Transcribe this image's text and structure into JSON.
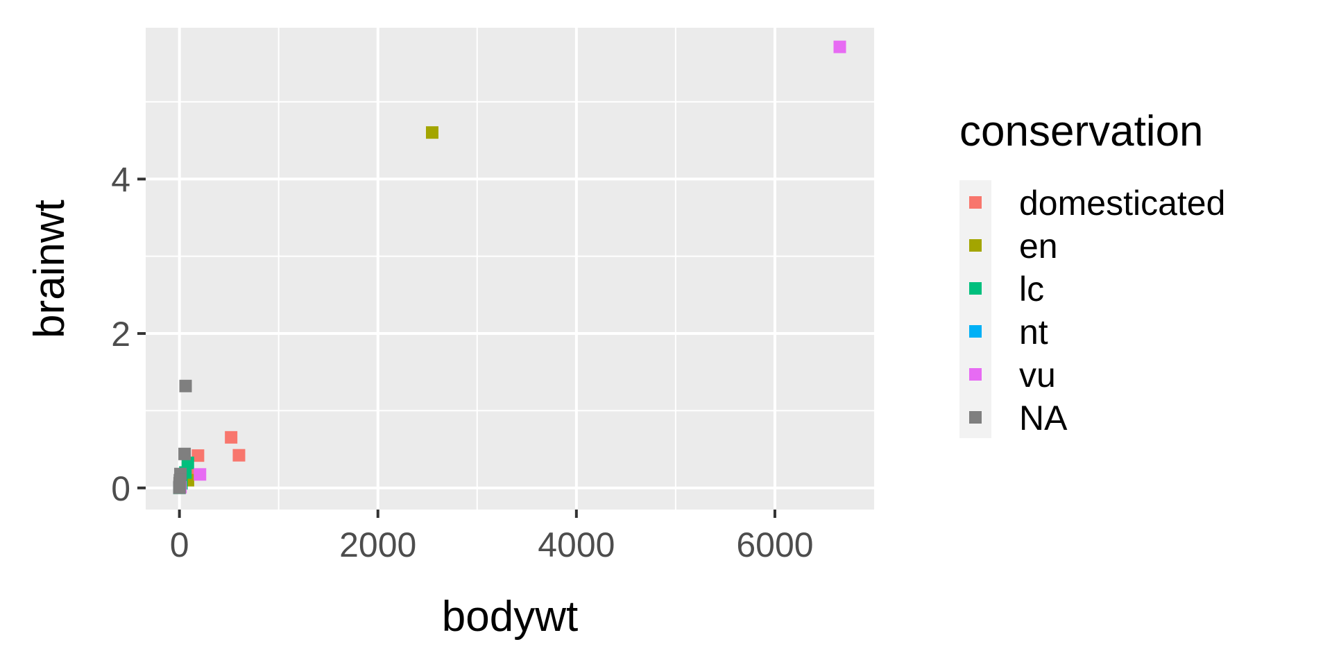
{
  "chart_data": {
    "type": "scatter",
    "title": "",
    "xlabel": "bodywt",
    "ylabel": "brainwt",
    "xlim": [
      -340,
      7000
    ],
    "ylim": [
      -0.28,
      5.96
    ],
    "x_ticks": [
      0,
      2000,
      4000,
      6000
    ],
    "x_tick_labels": [
      "0",
      "2000",
      "4000",
      "6000"
    ],
    "y_ticks": [
      0,
      2,
      4
    ],
    "y_tick_labels": [
      "0",
      "2",
      "4"
    ],
    "x_minor_ticks": [
      1000,
      3000,
      5000
    ],
    "y_minor_ticks": [
      1,
      3,
      5
    ],
    "grid": true,
    "marker": "square",
    "legend": {
      "title": "conservation",
      "position": "right"
    },
    "series": [
      {
        "name": "domesticated",
        "color": "#F8766D",
        "points": [
          {
            "x": 521,
            "y": 0.655
          },
          {
            "x": 600,
            "y": 0.423
          },
          {
            "x": 187,
            "y": 0.419
          },
          {
            "x": 85,
            "y": 0.18
          },
          {
            "x": 62,
            "y": 0.175
          },
          {
            "x": 3.3,
            "y": 0.025
          },
          {
            "x": 0.6,
            "y": 0.005
          },
          {
            "x": 1.0,
            "y": 0.0055
          }
        ]
      },
      {
        "name": "en",
        "color": "#A3A500",
        "points": [
          {
            "x": 2547,
            "y": 4.603
          },
          {
            "x": 86,
            "y": 0.1
          },
          {
            "x": 10,
            "y": 0.02
          }
        ]
      },
      {
        "name": "lc",
        "color": "#00BF7D",
        "points": [
          {
            "x": 85,
            "y": 0.325
          },
          {
            "x": 60,
            "y": 0.2
          },
          {
            "x": 20,
            "y": 0.06
          },
          {
            "x": 3.5,
            "y": 0.012
          },
          {
            "x": 0.05,
            "y": 0.001
          }
        ]
      },
      {
        "name": "nt",
        "color": "#00B0F6",
        "points": [
          {
            "x": 3.4,
            "y": 0.011
          },
          {
            "x": 0.9,
            "y": 0.004
          }
        ]
      },
      {
        "name": "vu",
        "color": "#E76BF3",
        "points": [
          {
            "x": 6654,
            "y": 5.712
          },
          {
            "x": 207,
            "y": 0.175
          },
          {
            "x": 10,
            "y": 0.01
          }
        ]
      },
      {
        "name": "NA",
        "color": "#7F7F7F",
        "points": [
          {
            "x": 62,
            "y": 1.32
          },
          {
            "x": 52,
            "y": 0.44
          },
          {
            "x": 10,
            "y": 0.18
          },
          {
            "x": 4.5,
            "y": 0.1
          },
          {
            "x": 2.0,
            "y": 0.06
          },
          {
            "x": 1.0,
            "y": 0.02
          },
          {
            "x": 0.3,
            "y": 0.005
          },
          {
            "x": 0.1,
            "y": 0.002
          }
        ]
      }
    ]
  }
}
